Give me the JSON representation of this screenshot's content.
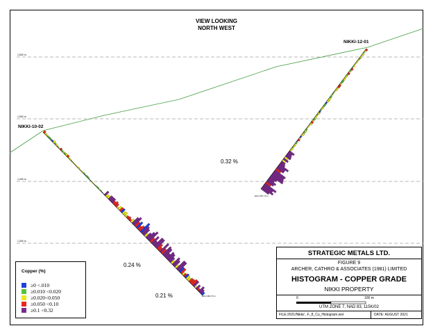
{
  "view_title": [
    "VIEW LOOKING",
    "NORTH WEST"
  ],
  "holes": [
    {
      "name": "NIKKI-10-02",
      "eoh_label": "EOH 384.76 m",
      "grade_label": "0.24 %",
      "grade_label_2": "0.21 %"
    },
    {
      "name": "NIKKI-12-01",
      "eoh_label": "EOH 287.76 m",
      "grade_label": "0.32 %"
    }
  ],
  "elevations": [
    "1,600 m",
    "1,500 m",
    "1,400 m",
    "1,300 m"
  ],
  "legend": {
    "title": "Copper (%)",
    "items": [
      {
        "label": "≥0 <.010",
        "color": "#1f3fe0"
      },
      {
        "label": "≥0.010 <0.020",
        "color": "#58c23a"
      },
      {
        "label": "≥0.020<0.050",
        "color": "#e8e81e"
      },
      {
        "label": "≥0.050 <0.10",
        "color": "#e8281e"
      },
      {
        "label": "≥0.1 <0.32",
        "color": "#7a2a8c"
      }
    ]
  },
  "title_block": {
    "company": "STRATEGIC METALS LTD.",
    "figure": "FIGURE 9",
    "consultant": "ARCHER, CATHRO & ASSOCIATES (1981) LIMITED",
    "title": "HISTOGRAM - COPPER GRADE",
    "property": "NIKKI PROPERTY",
    "scale_start": "0",
    "scale_end": "100 m",
    "projection": "UTM ZONE 7, NAD 83, 115K/02",
    "file": "FILE:2021/Nikki/...F_8_Cu_Histogram.wor",
    "date": "DATE: AUGUST 2021"
  },
  "colors": {
    "topography": "#3f9a3f",
    "gridline": "#a0a0a0"
  }
}
